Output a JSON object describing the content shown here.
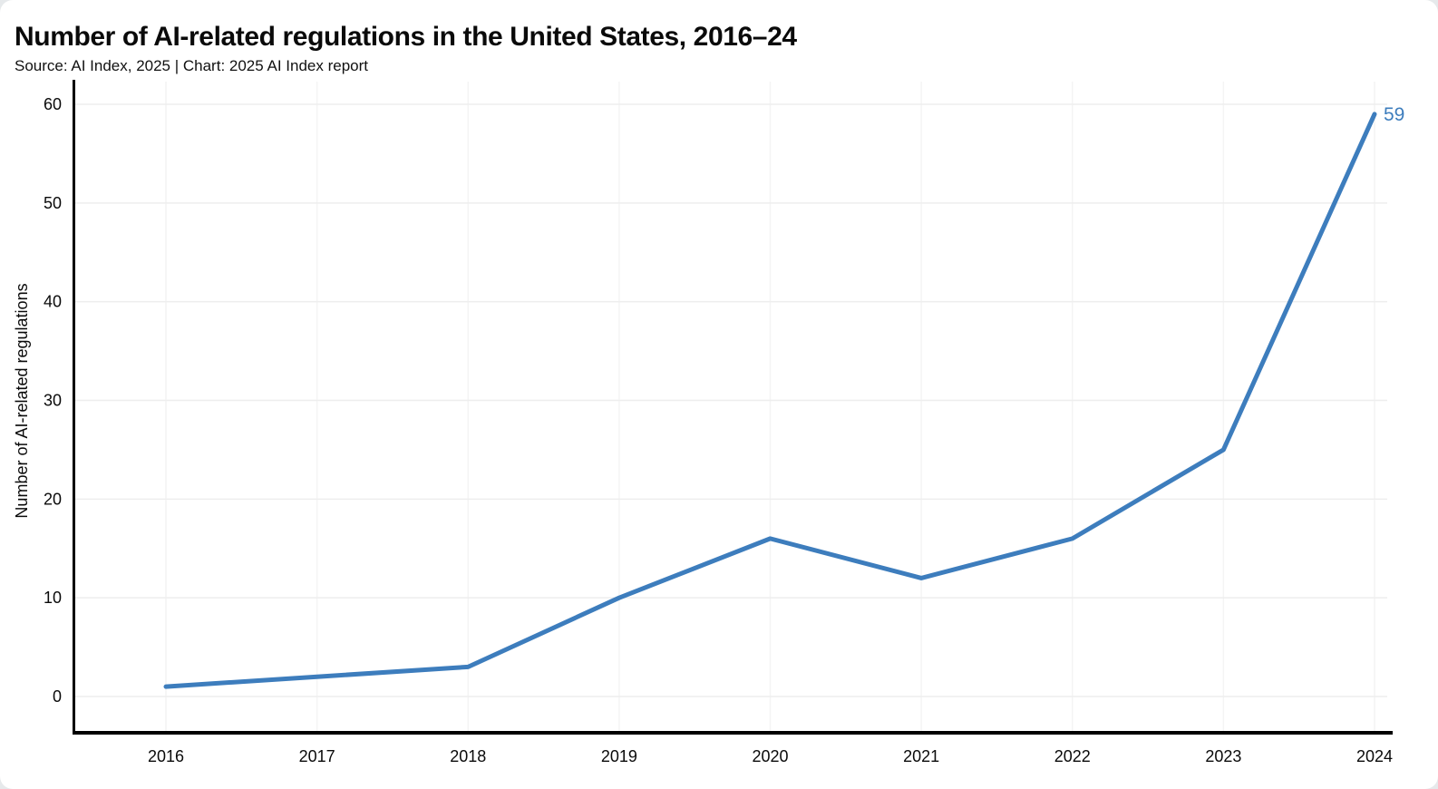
{
  "header": {
    "title": "Number of AI-related regulations in the United States, 2016–24",
    "subtitle": "Source: AI Index, 2025 | Chart: 2025 AI Index report"
  },
  "chart_data": {
    "type": "line",
    "x": [
      "2016",
      "2017",
      "2018",
      "2019",
      "2020",
      "2021",
      "2022",
      "2023",
      "2024"
    ],
    "values": [
      1,
      2,
      3,
      10,
      16,
      12,
      16,
      25,
      59
    ],
    "series_name": "Number of AI-related regulations",
    "title": "Number of AI-related regulations in the United States, 2016–24",
    "subtitle": "Source: AI Index, 2025 | Chart: 2025 AI Index report",
    "xlabel": "",
    "ylabel": "Number of AI-related regulations",
    "ylim": [
      0,
      60
    ],
    "yticks": [
      0,
      10,
      20,
      30,
      40,
      50,
      60
    ],
    "grid": true,
    "legend": "none",
    "end_label": "59",
    "colors": {
      "line": "#3d7dbd",
      "end_label": "#3d7dbd",
      "axis": "#000000",
      "grid_horizontal": "#eeeeee",
      "grid_vertical": "#f4f4f4",
      "background": "#ffffff"
    }
  }
}
